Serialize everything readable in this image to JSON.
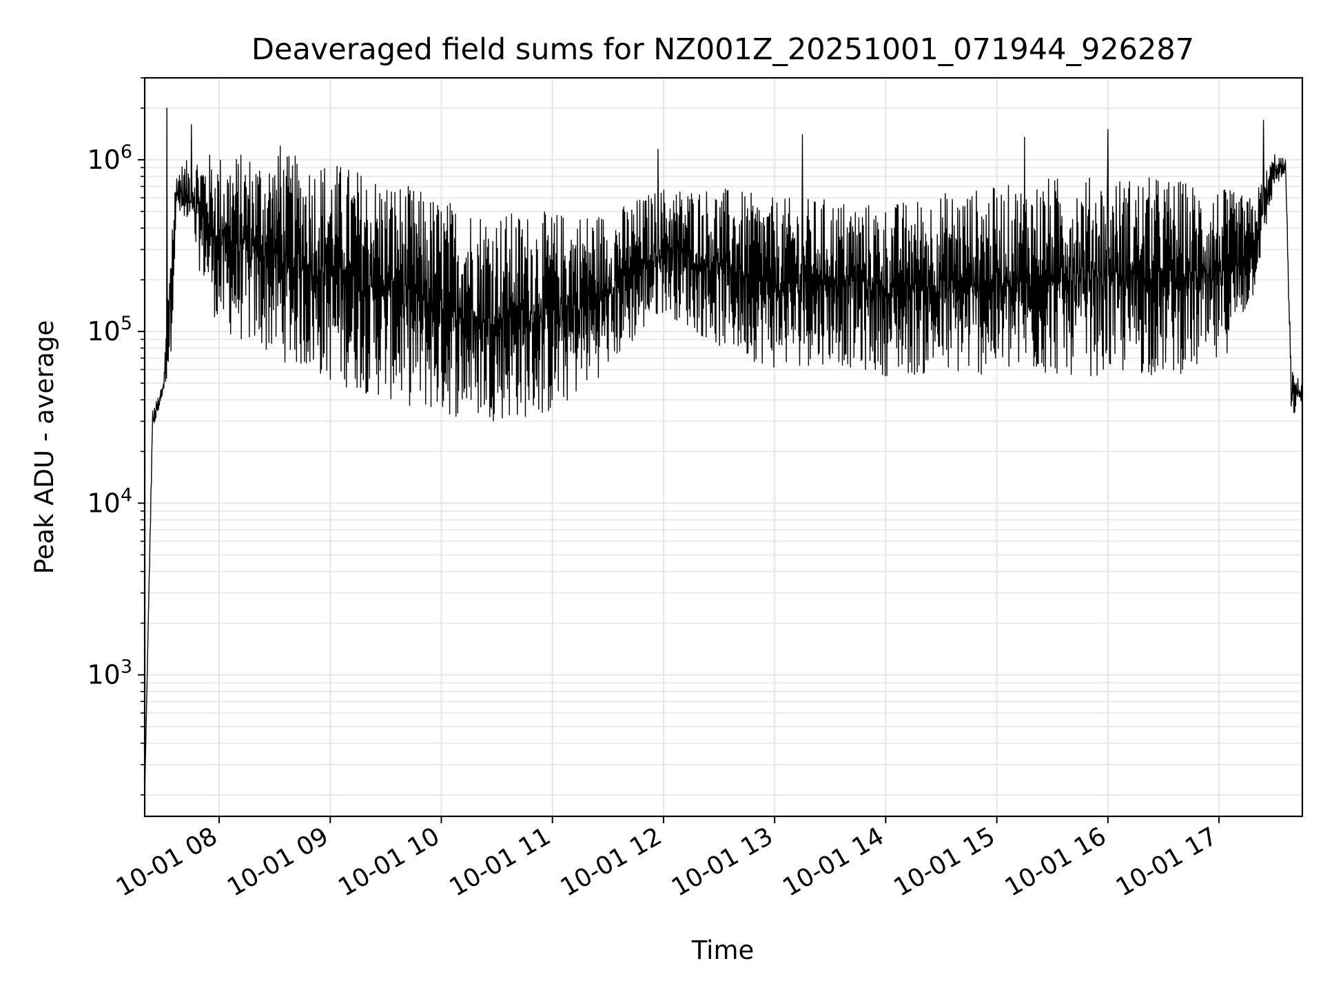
{
  "chart_data": {
    "type": "line",
    "title": "Deaveraged field sums for NZ001Z_20251001_071944_926287",
    "xlabel": "Time",
    "ylabel": "Peak ADU - average",
    "yscale": "log",
    "ylim": [
      150,
      3000000
    ],
    "xlim_hours": [
      7.33,
      17.75
    ],
    "grid": true,
    "line_color": "#000000",
    "grid_color": "#e5e5e5",
    "x_ticks": [
      {
        "label": "10-01 08",
        "hour": 8
      },
      {
        "label": "10-01 09",
        "hour": 9
      },
      {
        "label": "10-01 10",
        "hour": 10
      },
      {
        "label": "10-01 11",
        "hour": 11
      },
      {
        "label": "10-01 12",
        "hour": 12
      },
      {
        "label": "10-01 13",
        "hour": 13
      },
      {
        "label": "10-01 14",
        "hour": 14
      },
      {
        "label": "10-01 15",
        "hour": 15
      },
      {
        "label": "10-01 16",
        "hour": 16
      },
      {
        "label": "10-01 17",
        "hour": 17
      }
    ],
    "y_ticks": [
      {
        "base": "10",
        "exp": "3",
        "value": 1000
      },
      {
        "base": "10",
        "exp": "4",
        "value": 10000
      },
      {
        "base": "10",
        "exp": "5",
        "value": 100000
      },
      {
        "base": "10",
        "exp": "6",
        "value": 1000000
      }
    ],
    "series": [
      {
        "name": "field sums",
        "envelope": [
          {
            "hour": 7.33,
            "low": 200,
            "high": 200
          },
          {
            "hour": 7.4,
            "low": 25000,
            "high": 35000
          },
          {
            "hour": 7.5,
            "low": 45000,
            "high": 50000
          },
          {
            "hour": 7.56,
            "low": 60000,
            "high": 400000
          },
          {
            "hour": 7.62,
            "low": 500000,
            "high": 900000
          },
          {
            "hour": 7.8,
            "low": 250000,
            "high": 1100000
          },
          {
            "hour": 8.0,
            "low": 100000,
            "high": 1100000
          },
          {
            "hour": 8.5,
            "low": 70000,
            "high": 1100000
          },
          {
            "hour": 9.0,
            "low": 50000,
            "high": 1000000
          },
          {
            "hour": 9.5,
            "low": 40000,
            "high": 800000
          },
          {
            "hour": 10.0,
            "low": 32000,
            "high": 600000
          },
          {
            "hour": 10.5,
            "low": 30000,
            "high": 500000
          },
          {
            "hour": 11.0,
            "low": 32000,
            "high": 500000
          },
          {
            "hour": 11.5,
            "low": 60000,
            "high": 500000
          },
          {
            "hour": 12.0,
            "low": 130000,
            "high": 700000
          },
          {
            "hour": 12.5,
            "low": 80000,
            "high": 700000
          },
          {
            "hour": 13.0,
            "low": 60000,
            "high": 600000
          },
          {
            "hour": 13.5,
            "low": 65000,
            "high": 600000
          },
          {
            "hour": 14.0,
            "low": 55000,
            "high": 550000
          },
          {
            "hour": 14.5,
            "low": 55000,
            "high": 650000
          },
          {
            "hour": 15.0,
            "low": 55000,
            "high": 700000
          },
          {
            "hour": 15.5,
            "low": 55000,
            "high": 800000
          },
          {
            "hour": 16.0,
            "low": 55000,
            "high": 800000
          },
          {
            "hour": 16.5,
            "low": 55000,
            "high": 800000
          },
          {
            "hour": 17.0,
            "low": 60000,
            "high": 700000
          },
          {
            "hour": 17.3,
            "low": 150000,
            "high": 600000
          },
          {
            "hour": 17.5,
            "low": 700000,
            "high": 1100000
          },
          {
            "hour": 17.6,
            "low": 800000,
            "high": 1000000
          },
          {
            "hour": 17.65,
            "low": 30000,
            "high": 60000
          },
          {
            "hour": 17.75,
            "low": 40000,
            "high": 50000
          }
        ],
        "spikes": [
          {
            "hour": 7.53,
            "value": 2000000
          },
          {
            "hour": 7.75,
            "value": 1600000
          },
          {
            "hour": 8.55,
            "value": 1200000
          },
          {
            "hour": 11.95,
            "value": 1150000
          },
          {
            "hour": 13.25,
            "value": 1400000
          },
          {
            "hour": 15.25,
            "value": 1350000
          },
          {
            "hour": 16.0,
            "value": 1500000
          },
          {
            "hour": 17.4,
            "value": 1700000
          }
        ]
      }
    ]
  }
}
